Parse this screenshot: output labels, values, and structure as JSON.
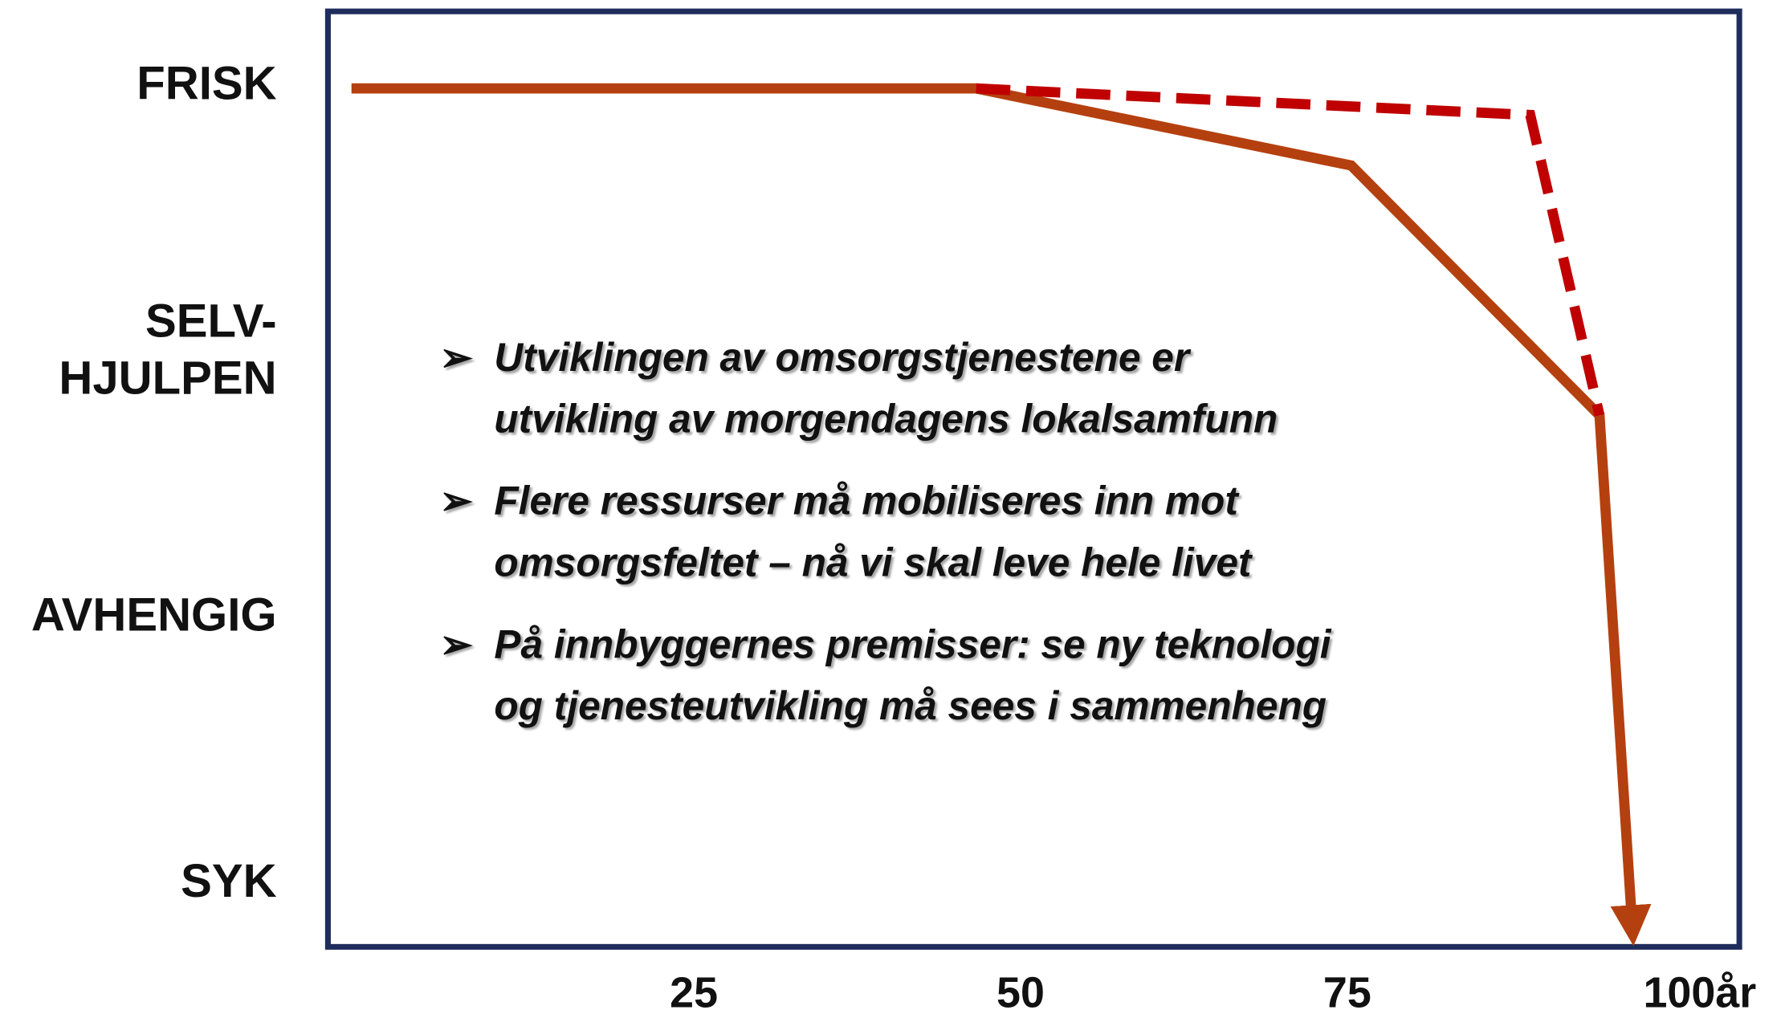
{
  "chart_data": {
    "type": "line",
    "xlim": [
      -3,
      105
    ],
    "xticks": [
      25,
      50,
      75,
      {
        "value": 100,
        "label": "100år"
      }
    ],
    "ylim": [
      -0.25,
      3.27
    ],
    "yticks": [
      {
        "value": 3,
        "label": "FRISK"
      },
      {
        "value": 2,
        "label": "SELV-\nHJULPEN"
      },
      {
        "value": 1,
        "label": "AVHENGIG"
      },
      {
        "value": 0,
        "label": "SYK"
      }
    ],
    "grid": false,
    "series": [
      {
        "color": "#b5400f",
        "style": "solid",
        "x": [
          -1.2,
          46.6,
          75.3,
          94.3,
          96.8
        ],
        "values": [
          2.98,
          2.98,
          2.69,
          1.75,
          -0.17
        ]
      },
      {
        "color": "#c00000",
        "style": "dashed",
        "x": [
          46.6,
          89,
          94.3
        ],
        "values": [
          2.98,
          2.88,
          1.75
        ]
      }
    ],
    "annotations": [
      "Utviklingen av omsorgstjenestene er\nutvikling av morgendagens lokalsamfunn",
      "Flere ressurser må mobiliseres inn mot\nomsorgsfeltet – nå vi skal leve hele livet",
      "På innbyggernes premisser: se ny teknologi\nog tjenesteutvikling må sees i sammenheng"
    ]
  }
}
